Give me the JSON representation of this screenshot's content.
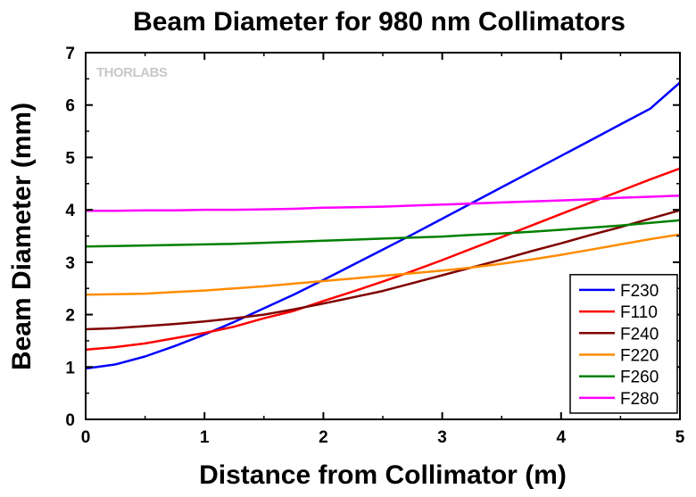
{
  "chart_data": {
    "type": "line",
    "title": "Beam Diameter for 980 nm Collimators",
    "xlabel": "Distance from Collimator (m)",
    "ylabel": "Beam Diameter (mm)",
    "xlim": [
      0,
      5
    ],
    "ylim": [
      0,
      7
    ],
    "xticks": [
      "0",
      "1",
      "2",
      "3",
      "4",
      "5"
    ],
    "yticks": [
      "0",
      "1",
      "2",
      "3",
      "4",
      "5",
      "6",
      "7"
    ],
    "grid": false,
    "legend_position": "bottom-right",
    "watermark": "THORLABS",
    "x": [
      0,
      0.25,
      0.5,
      0.75,
      1,
      1.25,
      1.5,
      1.75,
      2,
      2.25,
      2.5,
      2.75,
      3,
      3.25,
      3.5,
      3.75,
      4,
      4.25,
      4.5,
      4.75,
      5
    ],
    "series": [
      {
        "name": "F230",
        "color": "#0000ff",
        "values": [
          0.97,
          1.05,
          1.2,
          1.4,
          1.62,
          1.86,
          2.12,
          2.38,
          2.66,
          2.95,
          3.24,
          3.53,
          3.83,
          4.13,
          4.43,
          4.73,
          5.03,
          5.33,
          5.63,
          5.93,
          6.43
        ]
      },
      {
        "name": "F110",
        "color": "#ff0000",
        "values": [
          1.33,
          1.38,
          1.45,
          1.55,
          1.65,
          1.77,
          1.93,
          2.07,
          2.26,
          2.44,
          2.63,
          2.83,
          3.04,
          3.26,
          3.48,
          3.7,
          3.92,
          4.14,
          4.36,
          4.58,
          4.79
        ]
      },
      {
        "name": "F240",
        "color": "#800000",
        "values": [
          1.72,
          1.74,
          1.78,
          1.82,
          1.87,
          1.93,
          2.0,
          2.1,
          2.21,
          2.33,
          2.45,
          2.6,
          2.75,
          2.9,
          3.05,
          3.21,
          3.36,
          3.52,
          3.67,
          3.83,
          3.99
        ]
      },
      {
        "name": "F220",
        "color": "#ff8c00",
        "values": [
          2.38,
          2.39,
          2.4,
          2.43,
          2.46,
          2.5,
          2.54,
          2.59,
          2.64,
          2.69,
          2.74,
          2.79,
          2.84,
          2.9,
          2.97,
          3.05,
          3.14,
          3.24,
          3.34,
          3.44,
          3.53
        ]
      },
      {
        "name": "F260",
        "color": "#008000",
        "values": [
          3.3,
          3.31,
          3.32,
          3.33,
          3.34,
          3.35,
          3.37,
          3.39,
          3.41,
          3.43,
          3.45,
          3.47,
          3.49,
          3.52,
          3.55,
          3.58,
          3.62,
          3.66,
          3.7,
          3.75,
          3.8
        ]
      },
      {
        "name": "F280",
        "color": "#ff00ff",
        "values": [
          3.98,
          3.98,
          3.99,
          3.99,
          4.0,
          4.0,
          4.01,
          4.02,
          4.04,
          4.05,
          4.06,
          4.08,
          4.1,
          4.12,
          4.14,
          4.16,
          4.18,
          4.2,
          4.23,
          4.25,
          4.27
        ]
      }
    ]
  }
}
